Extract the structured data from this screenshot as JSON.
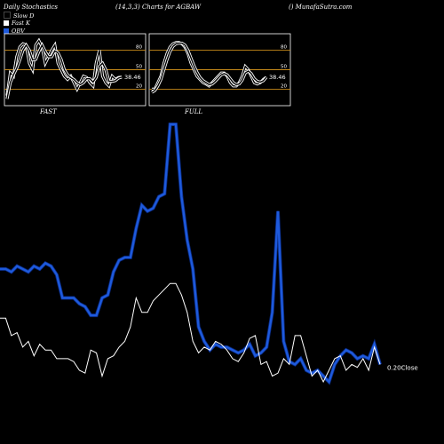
{
  "header": {
    "left": "Daily Stochastics",
    "center": "(14,3,3) Charts for AGBAW",
    "right": "() MunafaSutra.com"
  },
  "legend": [
    {
      "label": "Slow D",
      "color": "#000000"
    },
    {
      "label": "Fast K",
      "color": "#ffffff"
    },
    {
      "label": "OBV",
      "color": "#1e5adc"
    }
  ],
  "panels": [
    {
      "label": "FAST",
      "last_value": "38.46"
    },
    {
      "label": "FULL",
      "last_value": "38.46"
    }
  ],
  "main_annotation": "0.20Close",
  "chart_data": [
    {
      "type": "line",
      "title": "FAST",
      "ylim": [
        0,
        100
      ],
      "levels": [
        20,
        50,
        80
      ],
      "series": [
        {
          "name": "Fast K",
          "color": "#ffffff",
          "values": [
            10,
            45,
            40,
            70,
            85,
            90,
            88,
            60,
            50,
            88,
            95,
            85,
            60,
            70,
            80,
            88,
            60,
            50,
            40,
            35,
            40,
            30,
            20,
            30,
            40,
            38,
            30,
            25,
            60,
            80,
            40,
            30,
            25,
            40,
            35,
            38,
            38.46
          ]
        },
        {
          "name": "Slow D",
          "color": "#ffffff",
          "values": [
            5,
            30,
            42,
            52,
            65,
            80,
            88,
            80,
            65,
            66,
            78,
            88,
            78,
            70,
            70,
            79,
            76,
            66,
            50,
            42,
            38,
            35,
            30,
            27,
            30,
            36,
            36,
            31,
            38,
            55,
            60,
            50,
            32,
            32,
            33,
            37,
            38.46
          ]
        }
      ]
    },
    {
      "type": "line",
      "title": "FULL",
      "ylim": [
        0,
        100
      ],
      "levels": [
        20,
        50,
        80
      ],
      "series": [
        {
          "name": "Fast K",
          "color": "#ffffff",
          "values": [
            20,
            20,
            30,
            40,
            60,
            75,
            85,
            90,
            92,
            92,
            90,
            85,
            75,
            60,
            50,
            40,
            35,
            30,
            28,
            25,
            30,
            35,
            40,
            45,
            45,
            40,
            30,
            25,
            25,
            30,
            40,
            55,
            50,
            40,
            30,
            28,
            30,
            35,
            38.46
          ]
        },
        {
          "name": "Slow D",
          "color": "#ffffff",
          "values": [
            15,
            18,
            25,
            35,
            50,
            65,
            78,
            86,
            90,
            91,
            91,
            88,
            80,
            68,
            56,
            46,
            38,
            33,
            30,
            27,
            28,
            32,
            37,
            42,
            44,
            42,
            36,
            30,
            27,
            28,
            34,
            45,
            48,
            44,
            36,
            32,
            31,
            33,
            38.46
          ]
        }
      ]
    },
    {
      "type": "line",
      "title": "",
      "annotation": "0.20Close",
      "series": [
        {
          "name": "OBV",
          "color": "#1e5adc",
          "values": [
            45,
            45,
            44,
            46,
            45,
            44,
            46,
            45,
            47,
            46,
            43,
            35,
            35,
            35,
            33,
            32,
            29,
            29,
            35,
            36,
            44,
            48,
            49,
            49,
            59,
            67,
            65,
            66,
            70,
            71,
            95,
            95,
            70,
            55,
            45,
            25,
            20,
            17,
            19,
            18,
            18,
            17,
            16,
            17,
            19,
            15,
            16,
            18,
            30,
            65,
            20,
            13,
            12,
            14,
            10,
            9,
            10,
            8,
            6,
            12,
            15,
            17,
            16,
            14,
            15,
            14,
            19,
            12
          ]
        },
        {
          "name": "Close",
          "color": "#ffffff",
          "values": [
            28,
            28,
            22,
            23,
            18,
            20,
            15,
            19,
            17,
            17,
            14,
            14,
            14,
            13,
            10,
            9,
            17,
            16,
            8,
            14,
            15,
            18,
            20,
            25,
            35,
            30,
            30,
            34,
            36,
            38,
            40,
            40,
            36,
            30,
            20,
            16,
            18,
            17,
            20,
            19,
            17,
            14,
            13,
            16,
            21,
            22,
            12,
            13,
            8,
            9,
            14,
            12,
            22,
            22,
            15,
            8,
            10,
            6,
            10,
            14,
            15,
            10,
            12,
            11,
            14,
            10,
            18,
            12
          ]
        }
      ]
    }
  ]
}
